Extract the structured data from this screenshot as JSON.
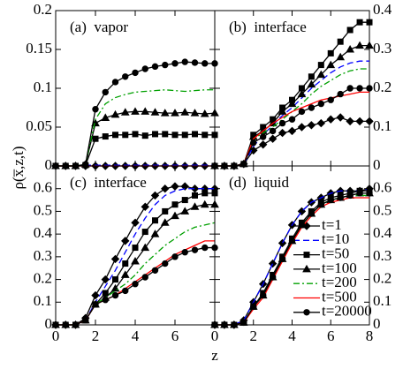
{
  "figure": {
    "xlabel": "z",
    "ylabel": "ρ(x̅,z,t)"
  },
  "chart_data": [
    {
      "type": "line",
      "title": "(a)  vapor",
      "xlim": [
        0,
        8
      ],
      "xticks": [
        0,
        2,
        4,
        6,
        8
      ],
      "xtick_labels": false,
      "ylim": [
        0,
        0.2
      ],
      "yticks": [
        0,
        0.05,
        0.1,
        0.15,
        0.2
      ],
      "yaxis_side": "left",
      "x": [
        0,
        0.5,
        1,
        1.5,
        2,
        2.5,
        3,
        3.5,
        4,
        4.5,
        5,
        5.5,
        6,
        6.5,
        7,
        7.5,
        8
      ],
      "series": [
        {
          "color": "#000000",
          "dash": "solid",
          "marker": "diamond",
          "values": [
            0,
            0,
            0,
            0,
            0,
            0,
            0,
            0,
            0,
            0,
            0,
            0,
            0,
            0,
            0,
            0,
            0
          ]
        },
        {
          "color": "#0000ff",
          "dash": "dashed",
          "marker": "none",
          "values": [
            0,
            0,
            0,
            0.001,
            0.001,
            0.001,
            0.001,
            0.001,
            0.001,
            0.001,
            0.001,
            0.001,
            0.001,
            0.001,
            0.001,
            0.001,
            0.001
          ]
        },
        {
          "color": "#000000",
          "dash": "solid",
          "marker": "square",
          "values": [
            0,
            0,
            0,
            0.001,
            0.035,
            0.038,
            0.04,
            0.04,
            0.041,
            0.039,
            0.041,
            0.041,
            0.04,
            0.04,
            0.041,
            0.04,
            0.04
          ]
        },
        {
          "color": "#000000",
          "dash": "solid",
          "marker": "triangle",
          "values": [
            0,
            0,
            0,
            0.002,
            0.055,
            0.062,
            0.066,
            0.069,
            0.07,
            0.07,
            0.069,
            0.068,
            0.068,
            0.069,
            0.068,
            0.067,
            0.068
          ]
        },
        {
          "color": "#00a000",
          "dash": "dashdot",
          "marker": "none",
          "values": [
            0,
            0,
            0,
            0.002,
            0.06,
            0.08,
            0.088,
            0.092,
            0.095,
            0.096,
            0.097,
            0.098,
            0.097,
            0.096,
            0.097,
            0.098,
            0.098
          ]
        },
        {
          "color": "#ff0000",
          "dash": "solid",
          "marker": "none",
          "values": [
            0,
            0,
            0,
            0,
            0,
            0,
            0,
            0,
            0,
            0,
            0,
            0,
            0,
            0,
            0,
            0,
            0
          ]
        },
        {
          "color": "#000000",
          "dash": "solid",
          "marker": "circle",
          "values": [
            0,
            0,
            0,
            0.002,
            0.073,
            0.095,
            0.108,
            0.115,
            0.12,
            0.125,
            0.128,
            0.13,
            0.132,
            0.134,
            0.133,
            0.132,
            0.132
          ]
        }
      ]
    },
    {
      "type": "line",
      "title": "(b)  interface",
      "xlim": [
        0,
        8
      ],
      "xticks": [
        0,
        2,
        4,
        6,
        8
      ],
      "xtick_labels": false,
      "ylim": [
        0,
        0.4
      ],
      "yticks": [
        0,
        0.1,
        0.2,
        0.3,
        0.4
      ],
      "yaxis_side": "right",
      "x": [
        0,
        0.5,
        1,
        1.5,
        2,
        2.5,
        3,
        3.5,
        4,
        4.5,
        5,
        5.5,
        6,
        6.5,
        7,
        7.5,
        8
      ],
      "series": [
        {
          "color": "#000000",
          "dash": "solid",
          "marker": "diamond",
          "values": [
            0,
            0,
            0,
            0.005,
            0.04,
            0.055,
            0.07,
            0.085,
            0.09,
            0.1,
            0.105,
            0.11,
            0.12,
            0.125,
            0.115,
            0.115,
            0.115
          ]
        },
        {
          "color": "#0000ff",
          "dash": "dashed",
          "marker": "none",
          "values": [
            0,
            0,
            0,
            0.005,
            0.05,
            0.08,
            0.105,
            0.13,
            0.15,
            0.175,
            0.2,
            0.22,
            0.24,
            0.255,
            0.265,
            0.27,
            0.27
          ]
        },
        {
          "color": "#000000",
          "dash": "solid",
          "marker": "square",
          "values": [
            0,
            0,
            0,
            0.005,
            0.08,
            0.1,
            0.12,
            0.15,
            0.17,
            0.2,
            0.23,
            0.26,
            0.29,
            0.32,
            0.35,
            0.37,
            0.37
          ]
        },
        {
          "color": "#000000",
          "dash": "solid",
          "marker": "triangle",
          "values": [
            0,
            0,
            0,
            0.005,
            0.075,
            0.09,
            0.11,
            0.14,
            0.16,
            0.185,
            0.21,
            0.235,
            0.26,
            0.28,
            0.3,
            0.31,
            0.31
          ]
        },
        {
          "color": "#00a000",
          "dash": "dashdot",
          "marker": "none",
          "values": [
            0,
            0,
            0,
            0.005,
            0.07,
            0.085,
            0.1,
            0.12,
            0.14,
            0.16,
            0.185,
            0.205,
            0.22,
            0.235,
            0.245,
            0.25,
            0.25
          ]
        },
        {
          "color": "#ff0000",
          "dash": "solid",
          "marker": "none",
          "values": [
            0,
            0,
            0,
            0.005,
            0.07,
            0.09,
            0.11,
            0.125,
            0.14,
            0.15,
            0.16,
            0.17,
            0.175,
            0.18,
            0.185,
            0.19,
            0.19
          ]
        },
        {
          "color": "#000000",
          "dash": "solid",
          "marker": "circle",
          "values": [
            0,
            0,
            0,
            0.005,
            0.06,
            0.075,
            0.09,
            0.11,
            0.12,
            0.14,
            0.15,
            0.16,
            0.17,
            0.185,
            0.2,
            0.2,
            0.2
          ]
        }
      ]
    },
    {
      "type": "line",
      "title": "(c)  interface",
      "xlim": [
        0,
        8
      ],
      "xticks": [
        0,
        2,
        4,
        6
      ],
      "xtick_labels": true,
      "ylim": [
        0,
        0.7
      ],
      "yticks": [
        0,
        0.1,
        0.2,
        0.3,
        0.4,
        0.5,
        0.6
      ],
      "yaxis_side": "left",
      "x": [
        0,
        0.5,
        1,
        1.5,
        2,
        2.5,
        3,
        3.5,
        4,
        4.5,
        5,
        5.5,
        6,
        6.5,
        7,
        7.5,
        8
      ],
      "series": [
        {
          "color": "#000000",
          "dash": "solid",
          "marker": "diamond",
          "values": [
            0,
            0,
            0,
            0.03,
            0.13,
            0.2,
            0.29,
            0.37,
            0.45,
            0.52,
            0.57,
            0.6,
            0.61,
            0.61,
            0.6,
            0.6,
            0.6
          ]
        },
        {
          "color": "#0000ff",
          "dash": "dashed",
          "marker": "none",
          "values": [
            0,
            0,
            0,
            0.02,
            0.1,
            0.17,
            0.24,
            0.32,
            0.4,
            0.47,
            0.53,
            0.57,
            0.59,
            0.6,
            0.6,
            0.6,
            0.6
          ]
        },
        {
          "color": "#000000",
          "dash": "solid",
          "marker": "square",
          "values": [
            0,
            0,
            0,
            0.02,
            0.09,
            0.14,
            0.2,
            0.27,
            0.34,
            0.41,
            0.46,
            0.5,
            0.53,
            0.55,
            0.57,
            0.58,
            0.58
          ]
        },
        {
          "color": "#000000",
          "dash": "solid",
          "marker": "triangle",
          "values": [
            0,
            0,
            0,
            0.02,
            0.09,
            0.12,
            0.16,
            0.22,
            0.28,
            0.34,
            0.4,
            0.45,
            0.48,
            0.5,
            0.52,
            0.53,
            0.53
          ]
        },
        {
          "color": "#00a000",
          "dash": "dashdot",
          "marker": "none",
          "values": [
            0,
            0,
            0,
            0.02,
            0.09,
            0.12,
            0.15,
            0.18,
            0.22,
            0.27,
            0.31,
            0.35,
            0.38,
            0.41,
            0.43,
            0.44,
            0.45
          ]
        },
        {
          "color": "#ff0000",
          "dash": "solid",
          "marker": "none",
          "values": [
            0,
            0,
            0,
            0.02,
            0.09,
            0.11,
            0.13,
            0.16,
            0.19,
            0.22,
            0.25,
            0.28,
            0.31,
            0.33,
            0.35,
            0.37,
            0.37
          ]
        },
        {
          "color": "#000000",
          "dash": "solid",
          "marker": "circle",
          "values": [
            0,
            0,
            0,
            0.02,
            0.09,
            0.11,
            0.13,
            0.15,
            0.18,
            0.21,
            0.24,
            0.27,
            0.3,
            0.32,
            0.33,
            0.34,
            0.34
          ]
        }
      ]
    },
    {
      "type": "line",
      "title": "(d)  liquid",
      "xlim": [
        0,
        8
      ],
      "xticks": [
        0,
        2,
        4,
        6,
        8
      ],
      "xtick_labels": true,
      "ylim": [
        0,
        0.7
      ],
      "yticks": [
        0,
        0.1,
        0.2,
        0.3,
        0.4,
        0.5,
        0.6
      ],
      "yaxis_side": "right",
      "legend": "lower right",
      "x": [
        0,
        0.5,
        1,
        1.5,
        2,
        2.5,
        3,
        3.5,
        4,
        4.5,
        5,
        5.5,
        6,
        6.5,
        7,
        7.5,
        8
      ],
      "series": [
        {
          "name": "t=1",
          "color": "#000000",
          "dash": "solid",
          "marker": "diamond",
          "values": [
            0,
            0,
            0,
            0.02,
            0.1,
            0.18,
            0.27,
            0.36,
            0.44,
            0.5,
            0.54,
            0.56,
            0.58,
            0.59,
            0.59,
            0.59,
            0.6
          ]
        },
        {
          "name": "t=10",
          "color": "#0000ff",
          "dash": "dashed",
          "marker": "none",
          "values": [
            0,
            0,
            0,
            0.02,
            0.1,
            0.18,
            0.27,
            0.36,
            0.44,
            0.5,
            0.54,
            0.56,
            0.58,
            0.59,
            0.59,
            0.59,
            0.6
          ]
        },
        {
          "name": "t=50",
          "color": "#000000",
          "dash": "solid",
          "marker": "square",
          "values": [
            0,
            0,
            0,
            0.01,
            0.08,
            0.14,
            0.22,
            0.3,
            0.38,
            0.45,
            0.5,
            0.54,
            0.56,
            0.57,
            0.58,
            0.59,
            0.59
          ]
        },
        {
          "name": "t=100",
          "color": "#000000",
          "dash": "solid",
          "marker": "triangle",
          "values": [
            0,
            0,
            0,
            0.01,
            0.08,
            0.13,
            0.21,
            0.29,
            0.37,
            0.44,
            0.49,
            0.53,
            0.55,
            0.56,
            0.57,
            0.58,
            0.58
          ]
        },
        {
          "name": "t=200",
          "color": "#00a000",
          "dash": "dashdot",
          "marker": "none",
          "values": [
            0,
            0,
            0,
            0.01,
            0.08,
            0.13,
            0.21,
            0.29,
            0.37,
            0.44,
            0.49,
            0.53,
            0.55,
            0.56,
            0.57,
            0.57,
            0.57
          ]
        },
        {
          "name": "t=500",
          "color": "#ff0000",
          "dash": "solid",
          "marker": "none",
          "values": [
            0,
            0,
            0,
            0.01,
            0.07,
            0.12,
            0.2,
            0.28,
            0.36,
            0.43,
            0.48,
            0.52,
            0.54,
            0.55,
            0.56,
            0.56,
            0.56
          ]
        },
        {
          "name": "t=20000",
          "color": "#000000",
          "dash": "solid",
          "marker": "circle",
          "values": [
            0,
            0,
            0,
            0.01,
            0.08,
            0.13,
            0.21,
            0.29,
            0.37,
            0.44,
            0.49,
            0.53,
            0.55,
            0.56,
            0.57,
            0.58,
            0.58
          ]
        }
      ]
    }
  ]
}
